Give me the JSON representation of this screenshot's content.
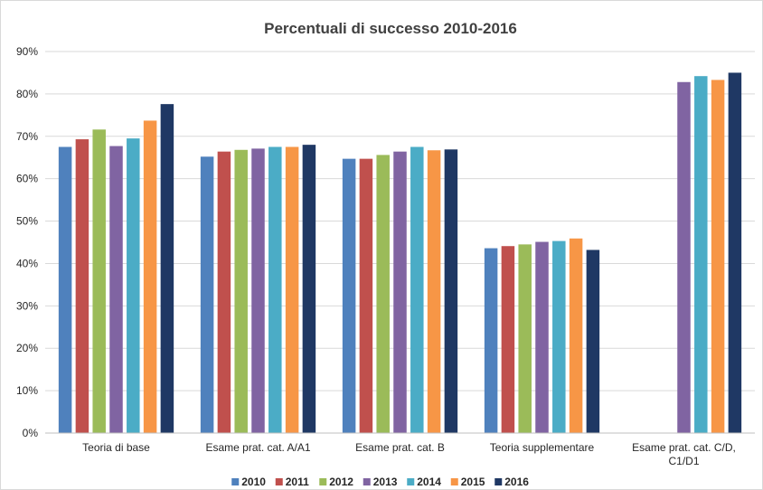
{
  "chart_data": {
    "type": "bar",
    "title": "Percentuali di successo 2010-2016",
    "xlabel": "",
    "ylabel": "",
    "ylim": [
      0,
      90
    ],
    "y_ticks": [
      0,
      10,
      20,
      30,
      40,
      50,
      60,
      70,
      80,
      90
    ],
    "y_tick_labels": [
      "0%",
      "10%",
      "20%",
      "30%",
      "40%",
      "50%",
      "60%",
      "70%",
      "80%",
      "90%"
    ],
    "grid": true,
    "legend_position": "bottom",
    "categories": [
      [
        "Teoria di base"
      ],
      [
        "Esame prat. cat. A/A1"
      ],
      [
        "Esame prat. cat. B"
      ],
      [
        "Teoria supplementare"
      ],
      [
        "Esame prat. cat. C/D,",
        "C1/D1"
      ]
    ],
    "series": [
      {
        "name": "2010",
        "color": "#4f81bd",
        "values": [
          67.5,
          65.2,
          64.7,
          43.6,
          null
        ]
      },
      {
        "name": "2011",
        "color": "#c0504d",
        "values": [
          69.3,
          66.4,
          64.7,
          44.1,
          null
        ]
      },
      {
        "name": "2012",
        "color": "#9bbb59",
        "values": [
          71.6,
          66.8,
          65.6,
          44.5,
          null
        ]
      },
      {
        "name": "2013",
        "color": "#8064a2",
        "values": [
          67.7,
          67.1,
          66.4,
          45.1,
          82.8
        ]
      },
      {
        "name": "2014",
        "color": "#4bacc6",
        "values": [
          69.5,
          67.5,
          67.5,
          45.3,
          84.2
        ]
      },
      {
        "name": "2015",
        "color": "#f79646",
        "values": [
          73.7,
          67.5,
          66.7,
          45.9,
          83.3
        ]
      },
      {
        "name": "2016",
        "color": "#1f3864",
        "values": [
          77.6,
          68.0,
          66.9,
          43.2,
          85.0
        ]
      }
    ]
  }
}
